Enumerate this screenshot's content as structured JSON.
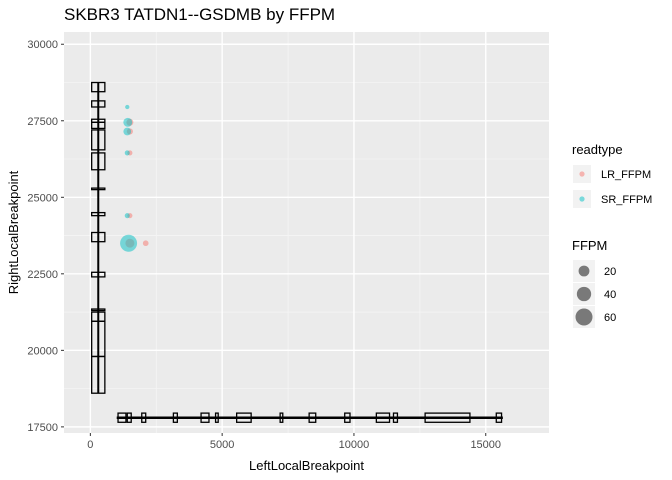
{
  "chart_data": {
    "type": "scatter",
    "title": "SKBR3 TATDN1--GSDMB by FFPM",
    "xlabel": "LeftLocalBreakpoint",
    "ylabel": "RightLocalBreakpoint",
    "xlim": [
      -1000,
      17400
    ],
    "ylim": [
      17300,
      30400
    ],
    "x_ticks": [
      0,
      5000,
      10000,
      15000
    ],
    "x_tick_labels": [
      "0",
      "5000",
      "10000",
      "15000"
    ],
    "y_ticks": [
      17500,
      20000,
      22500,
      25000,
      27500,
      30000
    ],
    "y_tick_labels": [
      "17500",
      "20000",
      "22500",
      "25000",
      "27500",
      "30000"
    ],
    "grid": true,
    "legend_position": "right",
    "series": [
      {
        "name": "LR_FFPM",
        "color": "#F8766D",
        "points": [
          {
            "x": 1500,
            "y": 27450,
            "ffpm": 6
          },
          {
            "x": 1500,
            "y": 27150,
            "ffpm": 4
          },
          {
            "x": 1500,
            "y": 26450,
            "ffpm": 2
          },
          {
            "x": 1500,
            "y": 24400,
            "ffpm": 2
          },
          {
            "x": 1500,
            "y": 23500,
            "ffpm": 12
          },
          {
            "x": 2100,
            "y": 23500,
            "ffpm": 3
          }
        ]
      },
      {
        "name": "SR_FFPM",
        "color": "#00BFC4",
        "points": [
          {
            "x": 1400,
            "y": 27950,
            "ffpm": 1
          },
          {
            "x": 1420,
            "y": 27450,
            "ffpm": 12
          },
          {
            "x": 1400,
            "y": 27150,
            "ffpm": 8
          },
          {
            "x": 1400,
            "y": 26450,
            "ffpm": 2
          },
          {
            "x": 1400,
            "y": 24400,
            "ffpm": 2
          },
          {
            "x": 1450,
            "y": 23500,
            "ffpm": 60
          }
        ]
      }
    ],
    "vertical_gene": {
      "x": 300,
      "width": 500,
      "line_y": [
        18600,
        28750
      ],
      "exons": [
        [
          28450,
          28750
        ],
        [
          27950,
          28150
        ],
        [
          27450,
          27550
        ],
        [
          27250,
          27450
        ],
        [
          26550,
          27200
        ],
        [
          25900,
          26450
        ],
        [
          25250,
          25300
        ],
        [
          24400,
          24500
        ],
        [
          23550,
          23850
        ],
        [
          22400,
          22550
        ],
        [
          21300,
          21350
        ],
        [
          20950,
          21250
        ],
        [
          19800,
          20950
        ],
        [
          18600,
          19800
        ]
      ]
    },
    "horizontal_gene": {
      "y": 17800,
      "height": 300,
      "line_x": [
        1000,
        15650
      ],
      "exons": [
        [
          1050,
          1350
        ],
        [
          1400,
          1550
        ],
        [
          1950,
          2100
        ],
        [
          3150,
          3300
        ],
        [
          4200,
          4500
        ],
        [
          4750,
          4850
        ],
        [
          5550,
          6100
        ],
        [
          7200,
          7300
        ],
        [
          8300,
          8550
        ],
        [
          9650,
          9850
        ],
        [
          10850,
          11350
        ],
        [
          11500,
          11650
        ],
        [
          12700,
          14400
        ],
        [
          15400,
          15600
        ]
      ]
    },
    "legend_readtype": {
      "title": "readtype",
      "items": [
        {
          "label": "LR_FFPM",
          "color": "#F8766D"
        },
        {
          "label": "SR_FFPM",
          "color": "#00BFC4"
        }
      ]
    },
    "legend_ffpm": {
      "title": "FFPM",
      "items": [
        {
          "label": "20",
          "value": 20
        },
        {
          "label": "40",
          "value": 40
        },
        {
          "label": "60",
          "value": 60
        }
      ]
    }
  }
}
